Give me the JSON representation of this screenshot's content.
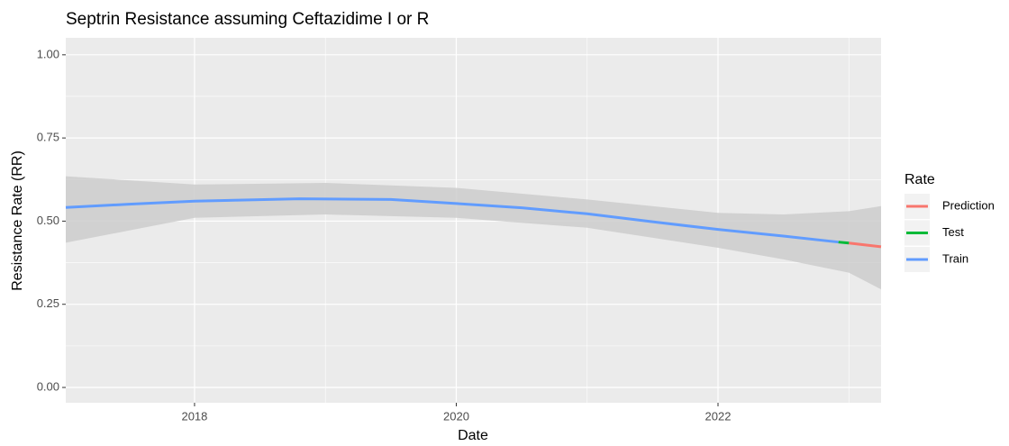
{
  "chart_data": {
    "type": "line",
    "title": "Septrin  Resistance assuming  Ceftazidime I or R",
    "x_label": "Date",
    "y_label": "Resistance Rate (RR)",
    "legend_title": "Rate",
    "legend": "right",
    "grid": true,
    "xlim": [
      2017.016,
      2023.246
    ],
    "ylim": [
      -0.046,
      1.051
    ],
    "xticks": [
      2018,
      2020,
      2022
    ],
    "xminor": [
      2019,
      2021,
      2023
    ],
    "yticks": [
      {
        "value": 0,
        "label": "0.00"
      },
      {
        "value": 0.25,
        "label": "0.25"
      },
      {
        "value": 0.5,
        "label": "0.50"
      },
      {
        "value": 0.75,
        "label": "0.75"
      },
      {
        "value": 1,
        "label": "1.00"
      }
    ],
    "yminor": [
      0.125,
      0.375,
      0.625,
      0.875
    ],
    "band": {
      "color": "#cccccc",
      "x": [
        2017.016,
        2018,
        2019,
        2020,
        2021,
        2022,
        2022.5,
        2023,
        2023.246
      ],
      "upper": [
        0.635,
        0.61,
        0.615,
        0.6,
        0.565,
        0.525,
        0.52,
        0.53,
        0.545
      ],
      "lower": [
        0.435,
        0.51,
        0.52,
        0.51,
        0.48,
        0.42,
        0.385,
        0.345,
        0.295
      ]
    },
    "series": [
      {
        "name": "Prediction",
        "color": "#F8766D",
        "x": [
          2023.0,
          2023.246
        ],
        "values": [
          0.434,
          0.423
        ]
      },
      {
        "name": "Test",
        "color": "#00BA38",
        "x": [
          2022.92,
          2023.0
        ],
        "values": [
          0.437,
          0.434
        ]
      },
      {
        "name": "Train",
        "color": "#619CFF",
        "x": [
          2017.016,
          2017.5,
          2018,
          2018.8,
          2019.5,
          2020,
          2020.5,
          2021,
          2021.5,
          2022,
          2022.5,
          2022.92
        ],
        "values": [
          0.541,
          0.551,
          0.56,
          0.567,
          0.565,
          0.553,
          0.54,
          0.522,
          0.498,
          0.475,
          0.455,
          0.437
        ]
      }
    ]
  }
}
